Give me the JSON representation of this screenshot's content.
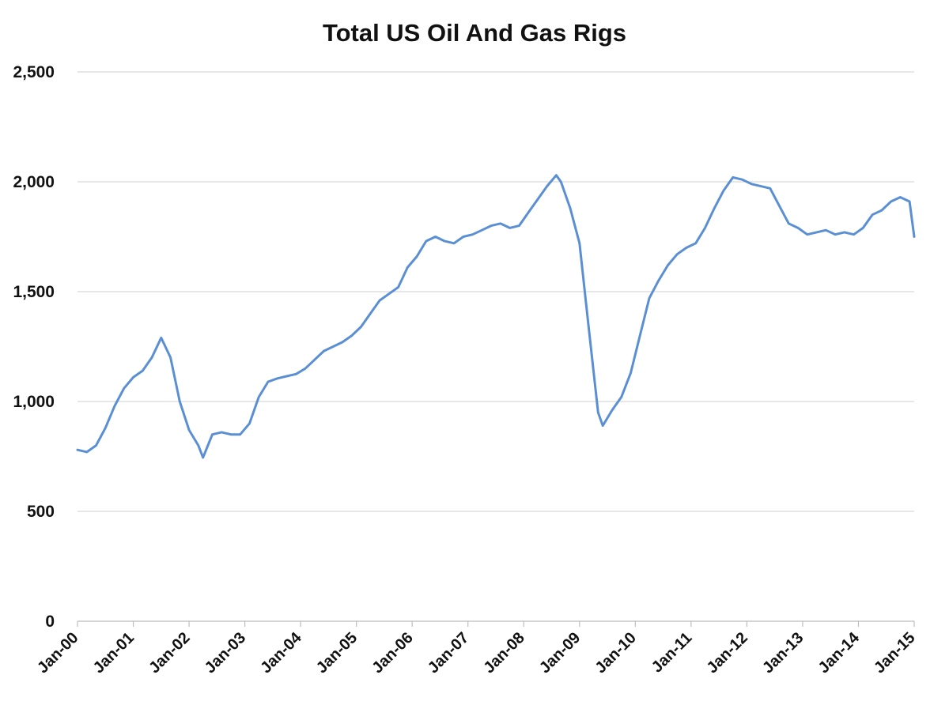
{
  "chart_data": {
    "type": "line",
    "title": "Total US Oil And Gas Rigs",
    "xlabel": "",
    "ylabel": "",
    "ylim": [
      0,
      2500
    ],
    "yticks": [
      0,
      500,
      1000,
      1500,
      2000,
      2500
    ],
    "ytick_labels": [
      "0",
      "500",
      "1,000",
      "1,500",
      "2,000",
      "2,500"
    ],
    "xlim": [
      "2000-01",
      "2015-01"
    ],
    "xtick_labels": [
      "Jan-00",
      "Jan-01",
      "Jan-02",
      "Jan-03",
      "Jan-04",
      "Jan-05",
      "Jan-06",
      "Jan-07",
      "Jan-08",
      "Jan-09",
      "Jan-10",
      "Jan-11",
      "Jan-12",
      "Jan-13",
      "Jan-14",
      "Jan-15"
    ],
    "grid": true,
    "legend": "none",
    "line_color": "#5b8fd4",
    "series": [
      {
        "x": [
          "2000-01",
          "2000-03",
          "2000-05",
          "2000-07",
          "2000-09",
          "2000-11",
          "2001-01",
          "2001-03",
          "2001-05",
          "2001-07",
          "2001-09",
          "2001-11",
          "2002-01",
          "2002-03",
          "2002-04",
          "2002-06",
          "2002-08",
          "2002-10",
          "2002-12",
          "2003-02",
          "2003-04",
          "2003-06",
          "2003-08",
          "2003-10",
          "2003-12",
          "2004-02",
          "2004-04",
          "2004-06",
          "2004-08",
          "2004-10",
          "2004-12",
          "2005-02",
          "2005-04",
          "2005-06",
          "2005-08",
          "2005-10",
          "2005-12",
          "2006-02",
          "2006-04",
          "2006-06",
          "2006-08",
          "2006-10",
          "2006-12",
          "2007-02",
          "2007-04",
          "2007-06",
          "2007-08",
          "2007-10",
          "2007-12",
          "2008-02",
          "2008-04",
          "2008-06",
          "2008-08",
          "2008-09",
          "2008-11",
          "2009-01",
          "2009-03",
          "2009-05",
          "2009-06",
          "2009-08",
          "2009-10",
          "2009-12",
          "2010-02",
          "2010-04",
          "2010-06",
          "2010-08",
          "2010-10",
          "2010-12",
          "2011-02",
          "2011-04",
          "2011-06",
          "2011-08",
          "2011-10",
          "2011-12",
          "2012-02",
          "2012-04",
          "2012-06",
          "2012-08",
          "2012-10",
          "2012-12",
          "2013-02",
          "2013-04",
          "2013-06",
          "2013-08",
          "2013-10",
          "2013-12",
          "2014-02",
          "2014-04",
          "2014-06",
          "2014-08",
          "2014-10",
          "2014-12",
          "2015-01"
        ],
        "values": [
          780,
          770,
          800,
          880,
          980,
          1060,
          1110,
          1140,
          1200,
          1290,
          1200,
          1000,
          870,
          800,
          745,
          850,
          860,
          850,
          850,
          900,
          1020,
          1090,
          1105,
          1115,
          1125,
          1150,
          1190,
          1230,
          1250,
          1270,
          1300,
          1340,
          1400,
          1460,
          1490,
          1520,
          1610,
          1660,
          1730,
          1750,
          1730,
          1720,
          1750,
          1760,
          1780,
          1800,
          1810,
          1790,
          1800,
          1860,
          1920,
          1980,
          2030,
          2000,
          1880,
          1720,
          1330,
          950,
          890,
          960,
          1020,
          1130,
          1300,
          1470,
          1550,
          1620,
          1670,
          1700,
          1720,
          1790,
          1880,
          1960,
          2020,
          2010,
          1990,
          1980,
          1970,
          1890,
          1810,
          1790,
          1760,
          1770,
          1780,
          1760,
          1770,
          1760,
          1790,
          1850,
          1870,
          1910,
          1930,
          1910,
          1750
        ]
      }
    ]
  }
}
